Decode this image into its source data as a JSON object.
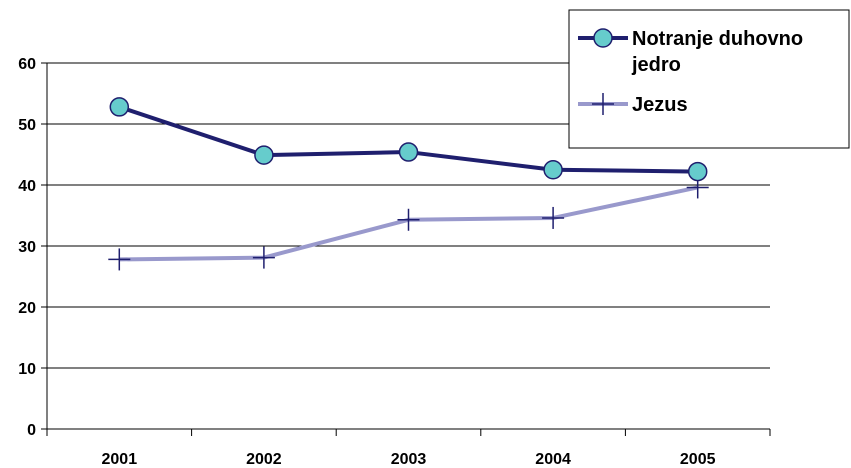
{
  "chart_data": {
    "type": "line",
    "title": "",
    "xlabel": "",
    "ylabel": "",
    "categories": [
      "2001",
      "2002",
      "2003",
      "2004",
      "2005"
    ],
    "ylim": [
      0,
      60
    ],
    "yticks": [
      "0",
      "10",
      "20",
      "30",
      "40",
      "50",
      "60"
    ],
    "grid": true,
    "legend_position": "top-right",
    "series": [
      {
        "name": "Notranje duhovno jedro",
        "name_lines": [
          "Notranje duhovno",
          "jedro"
        ],
        "values": [
          52.8,
          44.9,
          45.4,
          42.5,
          42.2
        ],
        "color": "#1f1f6e",
        "marker": "circle",
        "marker_color": "#66cccc"
      },
      {
        "name": "Jezus",
        "name_lines": [
          "Jezus"
        ],
        "values": [
          27.8,
          28.1,
          34.3,
          34.6,
          39.6
        ],
        "color": "#9999cc",
        "marker": "plus",
        "marker_color": "#1f1f6e"
      }
    ]
  }
}
